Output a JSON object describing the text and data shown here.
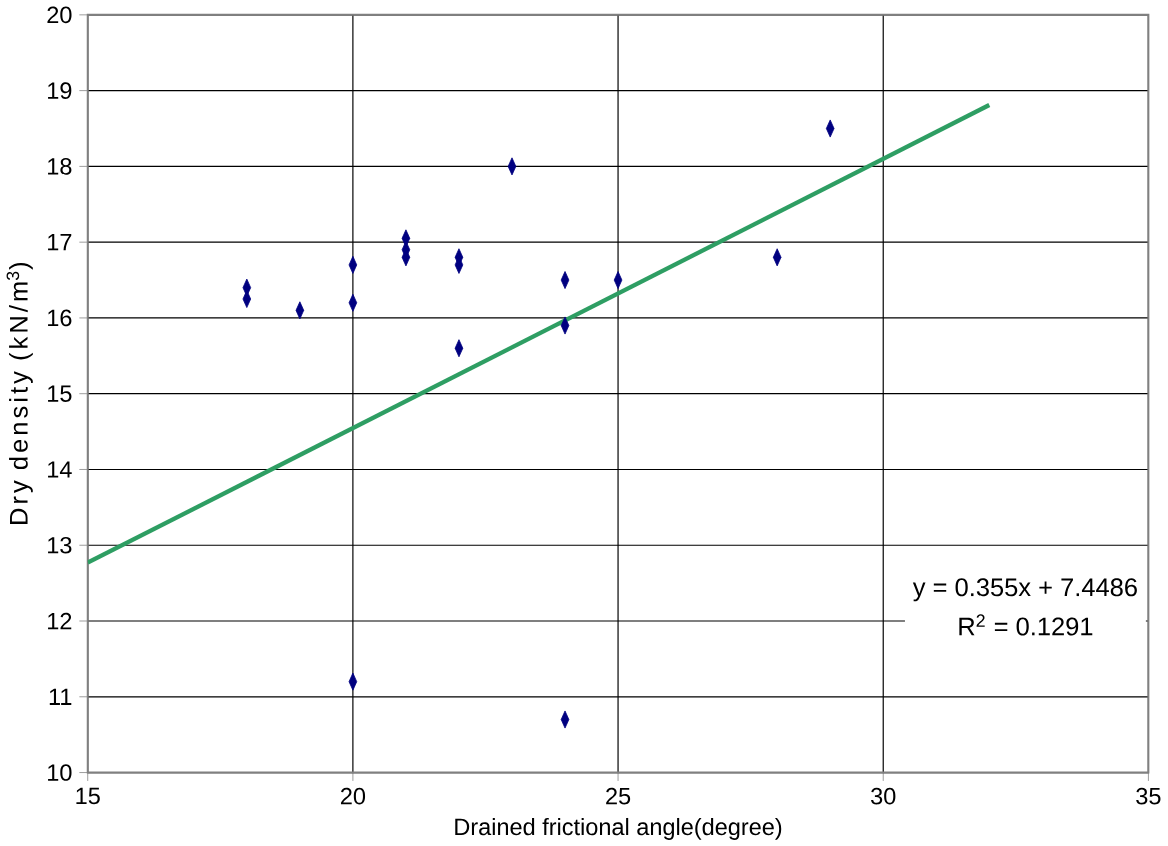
{
  "chart_data": {
    "type": "scatter",
    "xlabel": "Drained frictional angle(degree)",
    "ylabel": "Dry density  (kN/m$^{3}$)",
    "xlim": [
      15,
      35
    ],
    "ylim": [
      10,
      20
    ],
    "xticks": [
      15,
      20,
      25,
      30,
      35
    ],
    "yticks": [
      10,
      11,
      12,
      13,
      14,
      15,
      16,
      17,
      18,
      19,
      20
    ],
    "grid": true,
    "series": [
      {
        "color": "#000080",
        "marker": "diamond",
        "x": [
          18,
          18,
          19,
          20,
          20,
          20,
          21,
          21,
          21,
          22,
          22,
          22,
          23,
          24,
          24,
          24,
          25,
          28,
          29
        ],
        "values": [
          16.4,
          16.25,
          16.1,
          16.7,
          16.2,
          11.2,
          17.05,
          16.9,
          16.8,
          16.8,
          16.7,
          15.6,
          18.0,
          16.5,
          15.9,
          10.7,
          16.5,
          16.8,
          18.5
        ]
      },
      {
        "type": "line",
        "color": "#2e9e63",
        "x": [
          15,
          32
        ],
        "values": [
          12.77,
          18.81
        ]
      }
    ],
    "annotations": [
      "y = 0.355x + 7.4486",
      "R$^{2}$ = 0.1291"
    ]
  }
}
